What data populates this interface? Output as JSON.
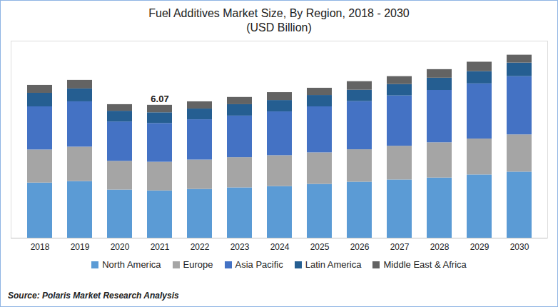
{
  "chart_data": {
    "type": "bar",
    "title": "Fuel Additives Market Size, By Region, 2018 - 2030",
    "subtitle": "(USD Billion)",
    "source": "Source: Polaris Market Research Analysis",
    "stacked": true,
    "grid": false,
    "legend": "bottom",
    "tick_labels": "x",
    "categories": [
      "2018",
      "2019",
      "2020",
      "2021",
      "2022",
      "2023",
      "2024",
      "2025",
      "2026",
      "2027",
      "2028",
      "2029",
      "2030"
    ],
    "ylim": [
      0,
      9
    ],
    "series": [
      {
        "name": "North America",
        "color": "#5b9bd5",
        "values": [
          2.52,
          2.59,
          2.2,
          2.16,
          2.23,
          2.3,
          2.36,
          2.46,
          2.56,
          2.66,
          2.75,
          2.89,
          3.02
        ]
      },
      {
        "name": "Europe",
        "color": "#a5a5a5",
        "values": [
          1.51,
          1.57,
          1.31,
          1.31,
          1.34,
          1.38,
          1.41,
          1.44,
          1.48,
          1.54,
          1.61,
          1.64,
          1.7
        ]
      },
      {
        "name": "Asia Pacific",
        "color": "#4472c4",
        "values": [
          1.97,
          2.07,
          1.8,
          1.77,
          1.84,
          1.9,
          2.0,
          2.1,
          2.2,
          2.3,
          2.39,
          2.52,
          2.66
        ]
      },
      {
        "name": "Latin America",
        "color": "#255e91",
        "values": [
          0.62,
          0.59,
          0.49,
          0.49,
          0.49,
          0.52,
          0.52,
          0.52,
          0.52,
          0.52,
          0.56,
          0.56,
          0.62
        ]
      },
      {
        "name": "Middle East & Africa",
        "color": "#636363",
        "values": [
          0.36,
          0.39,
          0.3,
          0.34,
          0.33,
          0.33,
          0.36,
          0.33,
          0.39,
          0.36,
          0.39,
          0.43,
          0.36
        ]
      }
    ],
    "annotations": [
      {
        "x": "2021",
        "value": 6.07
      }
    ]
  }
}
